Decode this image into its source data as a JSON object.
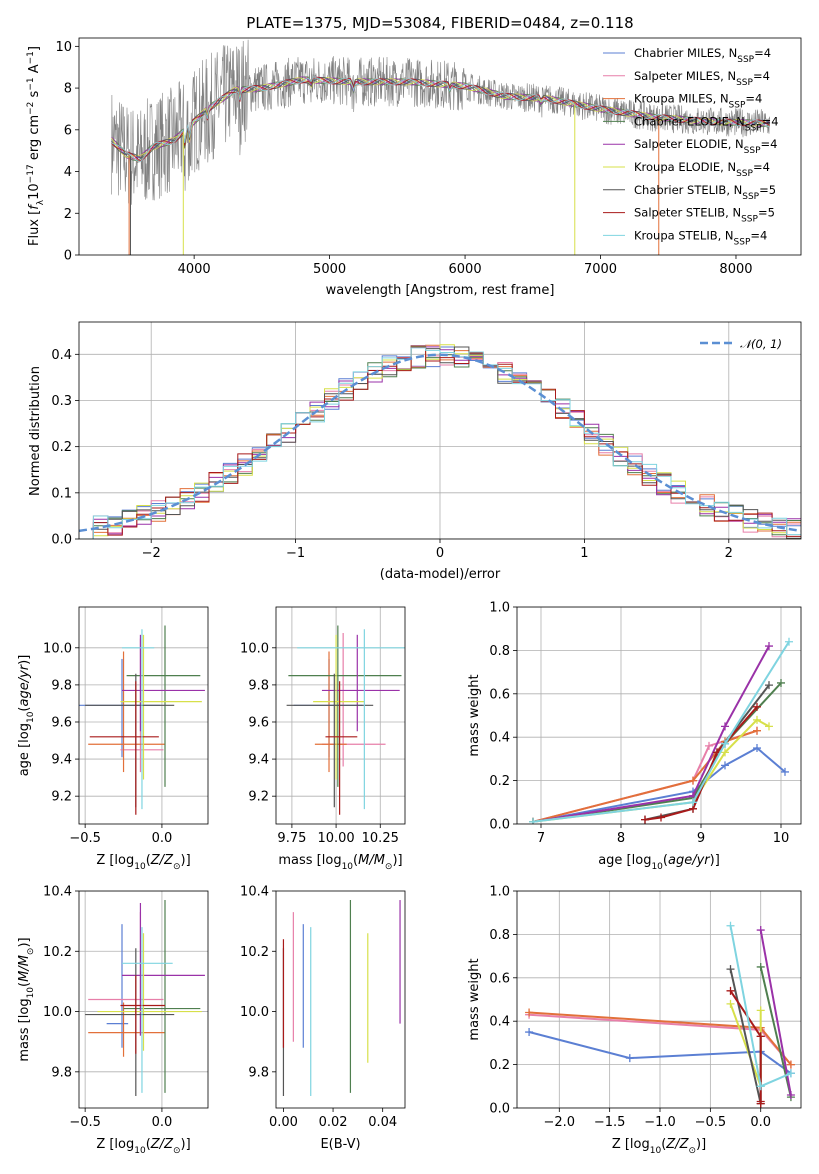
{
  "figure": {
    "title": "PLATE=1375, MJD=53084, FIBERID=0484, z=0.118"
  },
  "chart_data": [
    {
      "id": "spectrum",
      "type": "line",
      "xlabel": "wavelength [Angstrom, rest frame]",
      "ylabel": "Flux [f_λ 10^-17 erg cm^-2 s^-1 A^-1]",
      "xlim": [
        3150,
        8480
      ],
      "ylim": [
        0,
        10.4
      ],
      "xticks": [
        4000,
        5000,
        6000,
        7000,
        8000
      ],
      "yticks": [
        0,
        2,
        4,
        6,
        8,
        10
      ],
      "grid": false,
      "legend_position": "top-right",
      "data_color": "#808080",
      "continuum_points": [
        [
          3390,
          5.5
        ],
        [
          3500,
          4.8
        ],
        [
          3600,
          4.6
        ],
        [
          3700,
          5.2
        ],
        [
          3850,
          5.5
        ],
        [
          3950,
          6.1
        ],
        [
          4100,
          7.0
        ],
        [
          4300,
          7.9
        ],
        [
          4500,
          8.0
        ],
        [
          4800,
          8.4
        ],
        [
          5200,
          8.3
        ],
        [
          5600,
          8.3
        ],
        [
          6000,
          8.1
        ],
        [
          6300,
          7.6
        ],
        [
          6600,
          7.5
        ],
        [
          7000,
          7.0
        ],
        [
          7400,
          6.6
        ],
        [
          7800,
          6.4
        ],
        [
          8250,
          6.3
        ]
      ],
      "series": [
        {
          "name": "Chabrier MILES, N_SSP=4",
          "color": "#5b7fd3"
        },
        {
          "name": "Salpeter MILES, N_SSP=4",
          "color": "#e77fa9"
        },
        {
          "name": "Kroupa MILES, N_SSP=4",
          "color": "#e2703a"
        },
        {
          "name": "Chabrier ELODIE, N_SSP=4",
          "color": "#4f7f4f"
        },
        {
          "name": "Salpeter ELODIE, N_SSP=4",
          "color": "#9a32a8"
        },
        {
          "name": "Kroupa ELODIE, N_SSP=4",
          "color": "#d7e04a"
        },
        {
          "name": "Chabrier STELIB, N_SSP=5",
          "color": "#555555"
        },
        {
          "name": "Salpeter STELIB, N_SSP=5",
          "color": "#a81a1a"
        },
        {
          "name": "Kroupa STELIB, N_SSP=4",
          "color": "#7fd4e0"
        }
      ]
    },
    {
      "id": "residuals",
      "type": "bar",
      "xlabel": "(data-model)/error",
      "ylabel": "Normed distribution",
      "xlim": [
        -2.5,
        2.5
      ],
      "ylim": [
        0,
        0.47
      ],
      "xticks": [
        -2,
        -1,
        0,
        1,
        2
      ],
      "yticks": [
        0.0,
        0.1,
        0.2,
        0.3,
        0.4
      ],
      "grid": true,
      "legend": "𝒩(0, 1)",
      "legend_position": "top-right",
      "gaussian_color": "#5b8fd3",
      "bin_width": 0.1,
      "bins_start": -2.5
    },
    {
      "id": "age-vs-Z",
      "type": "scatter",
      "xlabel": "Z [log10(Z/Z⊙)]",
      "ylabel": "age [log10(age/yr)]",
      "xlim": [
        -0.54,
        0.3
      ],
      "ylim": [
        9.05,
        10.22
      ],
      "xticks": [
        -0.5,
        0.0
      ],
      "yticks": [
        9.2,
        9.4,
        9.6,
        9.8,
        10.0
      ],
      "grid": true,
      "points": [
        {
          "x": -0.26,
          "y": 9.69,
          "xerr": [
            0.28,
            0.25
          ],
          "yerr": [
            0.28,
            0.25
          ],
          "color": "#5b7fd3"
        },
        {
          "x": -0.14,
          "y": 9.45,
          "xerr": [
            0.13,
            0.15
          ],
          "yerr": [
            0.12,
            0.6
          ],
          "color": "#e77fa9"
        },
        {
          "x": -0.25,
          "y": 9.48,
          "xerr": [
            0.23,
            0.27
          ],
          "yerr": [
            0.15,
            0.5
          ],
          "color": "#e2703a"
        },
        {
          "x": 0.02,
          "y": 9.85,
          "xerr": [
            0.25,
            0.23
          ],
          "yerr": [
            0.6,
            0.27
          ],
          "color": "#4f7f4f"
        },
        {
          "x": -0.14,
          "y": 9.77,
          "xerr": [
            0.12,
            0.42
          ],
          "yerr": [
            0.22,
            0.3
          ],
          "color": "#9a32a8"
        },
        {
          "x": -0.12,
          "y": 9.71,
          "xerr": [
            0.15,
            0.38
          ],
          "yerr": [
            0.42,
            0.36
          ],
          "color": "#d7e04a"
        },
        {
          "x": -0.17,
          "y": 9.69,
          "xerr": [
            0.33,
            0.25
          ],
          "yerr": [
            0.55,
            0.17
          ],
          "color": "#555555"
        },
        {
          "x": -0.17,
          "y": 9.52,
          "xerr": [
            0.3,
            0.15
          ],
          "yerr": [
            0.42,
            0.3
          ],
          "color": "#a81a1a"
        },
        {
          "x": -0.13,
          "y": 10.0,
          "xerr": [
            0.13,
            0.08
          ],
          "yerr": [
            0.87,
            0.1
          ],
          "color": "#7fd4e0"
        }
      ]
    },
    {
      "id": "age-vs-mass",
      "type": "scatter",
      "xlabel": "mass [log10(M/M⊙)]",
      "ylabel": "",
      "xlim": [
        9.66,
        10.39
      ],
      "ylim": [
        9.05,
        10.22
      ],
      "xticks": [
        9.75,
        10.0,
        10.25
      ],
      "yticks": [
        9.2,
        9.4,
        9.6,
        9.8,
        10.0
      ],
      "grid": true,
      "points": [
        {
          "x": 9.96,
          "y": 9.69,
          "xerr": [
            0.2,
            0.19
          ],
          "yerr": [
            0.28,
            0.25
          ],
          "color": "#5b7fd3"
        },
        {
          "x": 10.04,
          "y": 9.48,
          "xerr": [
            0.12,
            0.24
          ],
          "yerr": [
            0.12,
            0.6
          ],
          "color": "#e77fa9"
        },
        {
          "x": 9.96,
          "y": 9.48,
          "xerr": [
            0.08,
            0.1
          ],
          "yerr": [
            0.15,
            0.5
          ],
          "color": "#e2703a"
        },
        {
          "x": 10.01,
          "y": 9.85,
          "xerr": [
            0.28,
            0.36
          ],
          "yerr": [
            0.6,
            0.27
          ],
          "color": "#4f7f4f"
        },
        {
          "x": 10.12,
          "y": 9.77,
          "xerr": [
            0.2,
            0.24
          ],
          "yerr": [
            0.22,
            0.3
          ],
          "color": "#9a32a8"
        },
        {
          "x": 10.0,
          "y": 9.71,
          "xerr": [
            0.13,
            0.16
          ],
          "yerr": [
            0.42,
            0.36
          ],
          "color": "#d7e04a"
        },
        {
          "x": 9.99,
          "y": 9.69,
          "xerr": [
            0.27,
            0.22
          ],
          "yerr": [
            0.55,
            0.17
          ],
          "color": "#555555"
        },
        {
          "x": 10.02,
          "y": 9.52,
          "xerr": [
            0.08,
            0.1
          ],
          "yerr": [
            0.42,
            0.3
          ],
          "color": "#a81a1a"
        },
        {
          "x": 10.16,
          "y": 10.0,
          "xerr": [
            0.38,
            0.24
          ],
          "yerr": [
            0.87,
            0.1
          ],
          "color": "#7fd4e0"
        }
      ]
    },
    {
      "id": "massweight-vs-age",
      "type": "line",
      "xlabel": "age [log10(age/yr)]",
      "ylabel": "mass weight",
      "xlim": [
        6.7,
        10.25
      ],
      "ylim": [
        0,
        1.0
      ],
      "xticks": [
        7,
        8,
        9,
        10
      ],
      "yticks": [
        0.0,
        0.2,
        0.4,
        0.6,
        0.8,
        1.0
      ],
      "grid": true,
      "series": [
        {
          "color": "#5b7fd3",
          "x": [
            6.9,
            8.9,
            9.3,
            9.7,
            10.05
          ],
          "y": [
            0.01,
            0.15,
            0.27,
            0.35,
            0.24
          ]
        },
        {
          "color": "#e77fa9",
          "x": [
            6.9,
            8.9,
            9.1,
            9.7
          ],
          "y": [
            0.01,
            0.2,
            0.36,
            0.43
          ]
        },
        {
          "color": "#e2703a",
          "x": [
            6.9,
            8.9,
            9.3,
            9.7
          ],
          "y": [
            0.01,
            0.2,
            0.38,
            0.43
          ]
        },
        {
          "color": "#4f7f4f",
          "x": [
            6.9,
            8.9,
            9.3,
            10.0
          ],
          "y": [
            0.01,
            0.12,
            0.37,
            0.65
          ]
        },
        {
          "color": "#9a32a8",
          "x": [
            6.9,
            8.9,
            9.3,
            9.85
          ],
          "y": [
            0.01,
            0.13,
            0.45,
            0.82
          ]
        },
        {
          "color": "#d7e04a",
          "x": [
            6.9,
            8.9,
            9.3,
            9.7,
            9.85
          ],
          "y": [
            0.01,
            0.1,
            0.33,
            0.48,
            0.45
          ]
        },
        {
          "color": "#555555",
          "x": [
            8.3,
            8.9,
            9.2,
            9.85
          ],
          "y": [
            0.02,
            0.07,
            0.33,
            0.64
          ]
        },
        {
          "color": "#a81a1a",
          "x": [
            8.3,
            8.5,
            8.9,
            9.2,
            9.7
          ],
          "y": [
            0.02,
            0.03,
            0.07,
            0.33,
            0.54
          ]
        },
        {
          "color": "#7fd4e0",
          "x": [
            6.9,
            8.9,
            9.3,
            10.1
          ],
          "y": [
            0.01,
            0.1,
            0.37,
            0.84
          ]
        }
      ]
    },
    {
      "id": "mass-vs-Z",
      "type": "scatter",
      "xlabel": "Z [log10(Z/Z⊙)]",
      "ylabel": "mass [log10(M/M⊙)]",
      "xlim": [
        -0.54,
        0.3
      ],
      "ylim": [
        9.68,
        10.4
      ],
      "xticks": [
        -0.5,
        0.0
      ],
      "yticks": [
        9.8,
        10.0,
        10.2,
        10.4
      ],
      "grid": true,
      "points": [
        {
          "x": -0.26,
          "y": 9.96,
          "xerr": [
            0.1,
            0.04
          ],
          "yerr": [
            0.08,
            0.33
          ],
          "color": "#5b7fd3"
        },
        {
          "x": -0.14,
          "y": 10.04,
          "xerr": [
            0.34,
            0.15
          ],
          "yerr": [
            0.12,
            0.29
          ],
          "color": "#e77fa9"
        },
        {
          "x": -0.25,
          "y": 9.93,
          "xerr": [
            0.23,
            0.27
          ],
          "yerr": [
            0.08,
            0.1
          ],
          "color": "#e2703a"
        },
        {
          "x": 0.02,
          "y": 10.01,
          "xerr": [
            0.27,
            0.23
          ],
          "yerr": [
            0.28,
            0.36
          ],
          "color": "#4f7f4f"
        },
        {
          "x": -0.14,
          "y": 10.12,
          "xerr": [
            0.12,
            0.42
          ],
          "yerr": [
            0.2,
            0.24
          ],
          "color": "#9a32a8"
        },
        {
          "x": -0.12,
          "y": 10.0,
          "xerr": [
            0.3,
            0.38
          ],
          "yerr": [
            0.13,
            0.26
          ],
          "color": "#d7e04a"
        },
        {
          "x": -0.17,
          "y": 9.99,
          "xerr": [
            0.33,
            0.25
          ],
          "yerr": [
            0.27,
            0.22
          ],
          "color": "#555555"
        },
        {
          "x": -0.17,
          "y": 10.02,
          "xerr": [
            0.1,
            0.19
          ],
          "yerr": [
            0.16,
            0.1
          ],
          "color": "#a81a1a"
        },
        {
          "x": -0.13,
          "y": 10.16,
          "xerr": [
            0.13,
            0.2
          ],
          "yerr": [
            0.43,
            0.12
          ],
          "color": "#7fd4e0"
        }
      ]
    },
    {
      "id": "mass-vs-ebv",
      "type": "scatter",
      "xlabel": "E(B-V)",
      "ylabel": "",
      "xlim": [
        -0.003,
        0.049
      ],
      "ylim": [
        9.68,
        10.4
      ],
      "xticks": [
        0.0,
        0.02,
        0.04
      ],
      "yticks": [
        9.8,
        10.0,
        10.2,
        10.4
      ],
      "grid": false,
      "points": [
        {
          "x": 0.0,
          "y": 9.99,
          "yerr": [
            0.27,
            0.22
          ],
          "color": "#555555"
        },
        {
          "x": 0.0,
          "y": 10.04,
          "yerr": [
            0.16,
            0.2
          ],
          "color": "#a81a1a"
        },
        {
          "x": 0.004,
          "y": 10.15,
          "yerr": [
            0.25,
            0.18
          ],
          "color": "#e77fa9"
        },
        {
          "x": 0.008,
          "y": 10.08,
          "yerr": [
            0.2,
            0.21
          ],
          "color": "#5b7fd3"
        },
        {
          "x": 0.011,
          "y": 10.0,
          "yerr": [
            0.28,
            0.28
          ],
          "color": "#7fd4e0"
        },
        {
          "x": 0.027,
          "y": 10.05,
          "yerr": [
            0.32,
            0.32
          ],
          "color": "#4f7f4f"
        },
        {
          "x": 0.034,
          "y": 10.05,
          "yerr": [
            0.22,
            0.21
          ],
          "color": "#d7e04a"
        },
        {
          "x": 0.047,
          "y": 10.16,
          "yerr": [
            0.2,
            0.21
          ],
          "color": "#9a32a8"
        }
      ]
    },
    {
      "id": "massweight-vs-Z",
      "type": "line",
      "xlabel": "Z [log10(Z/Z⊙)]",
      "ylabel": "mass weight",
      "xlim": [
        -2.42,
        0.4
      ],
      "ylim": [
        0,
        1.0
      ],
      "xticks": [
        -2.0,
        -1.5,
        -1.0,
        -0.5,
        0.0
      ],
      "yticks": [
        0.0,
        0.2,
        0.4,
        0.6,
        0.8,
        1.0
      ],
      "grid": true,
      "series": [
        {
          "color": "#5b7fd3",
          "x": [
            -2.3,
            -1.3,
            0.0,
            0.3
          ],
          "y": [
            0.35,
            0.23,
            0.26,
            0.16
          ]
        },
        {
          "color": "#e77fa9",
          "x": [
            -2.3,
            0.0,
            0.3
          ],
          "y": [
            0.43,
            0.36,
            0.2
          ]
        },
        {
          "color": "#e2703a",
          "x": [
            -2.3,
            0.0,
            0.3
          ],
          "y": [
            0.44,
            0.37,
            0.2
          ]
        },
        {
          "color": "#4f7f4f",
          "x": [
            0.0,
            0.3
          ],
          "y": [
            0.65,
            0.05
          ]
        },
        {
          "color": "#9a32a8",
          "x": [
            0.0,
            0.3
          ],
          "y": [
            0.82,
            0.06
          ]
        },
        {
          "color": "#d7e04a",
          "x": [
            -0.3,
            0.0,
            0.0
          ],
          "y": [
            0.48,
            0.1,
            0.45
          ]
        },
        {
          "color": "#555555",
          "x": [
            -0.3,
            0.0,
            0.0
          ],
          "y": [
            0.64,
            0.02,
            0.33
          ]
        },
        {
          "color": "#a81a1a",
          "x": [
            -0.3,
            0.0,
            0.0,
            0.0
          ],
          "y": [
            0.54,
            0.33,
            0.03,
            0.02
          ]
        },
        {
          "color": "#7fd4e0",
          "x": [
            -0.3,
            0.0,
            0.3
          ],
          "y": [
            0.84,
            0.1,
            0.16
          ]
        }
      ]
    }
  ]
}
